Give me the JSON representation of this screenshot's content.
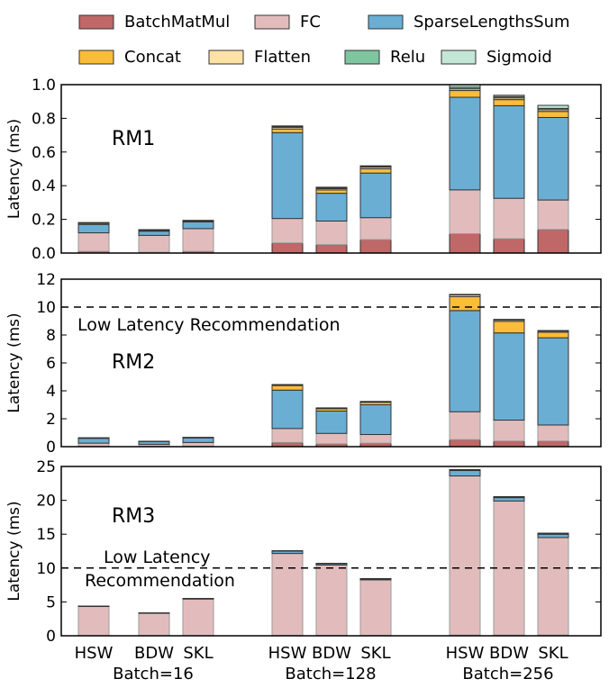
{
  "chart_data": {
    "type": "bar",
    "stacked": true,
    "legend": {
      "placement": "top",
      "entries": [
        {
          "name": "BatchMatMul",
          "color": "#c06767"
        },
        {
          "name": "FC",
          "color": "#e2bcbc"
        },
        {
          "name": "SparseLengthsSum",
          "color": "#6aaed3"
        },
        {
          "name": "Concat",
          "color": "#fbbc3a"
        },
        {
          "name": "Flatten",
          "color": "#fde2a6"
        },
        {
          "name": "Relu",
          "color": "#7dc69f"
        },
        {
          "name": "Sigmoid",
          "color": "#c4e6d6"
        }
      ]
    },
    "categories": [
      "HSW",
      "BDW",
      "SKL",
      "HSW",
      "BDW",
      "SKL",
      "HSW",
      "BDW",
      "SKL"
    ],
    "groups": [
      "Batch=16",
      "Batch=128",
      "Batch=256"
    ],
    "panels": [
      {
        "label": "RM1",
        "ylabel": "Latency (ms)",
        "ylim": [
          0,
          1.0
        ],
        "yticks": [
          "0.0",
          "0.2",
          "0.4",
          "0.6",
          "0.8",
          "1.0"
        ],
        "threshold": null,
        "annotation": [],
        "series": [
          {
            "name": "BatchMatMul",
            "values": [
              0.01,
              0.005,
              0.01,
              0.06,
              0.05,
              0.08,
              0.115,
              0.085,
              0.14
            ]
          },
          {
            "name": "FC",
            "values": [
              0.11,
              0.1,
              0.135,
              0.145,
              0.14,
              0.13,
              0.26,
              0.24,
              0.175
            ]
          },
          {
            "name": "SparseLengthsSum",
            "values": [
              0.05,
              0.025,
              0.04,
              0.51,
              0.165,
              0.265,
              0.55,
              0.55,
              0.49
            ]
          },
          {
            "name": "Concat",
            "values": [
              0.007,
              0.005,
              0.005,
              0.022,
              0.02,
              0.025,
              0.04,
              0.036,
              0.036
            ]
          },
          {
            "name": "Flatten",
            "values": [
              0.002,
              0.002,
              0.002,
              0.01,
              0.008,
              0.01,
              0.01,
              0.01,
              0.01
            ]
          },
          {
            "name": "Relu",
            "values": [
              0.001,
              0.001,
              0.001,
              0.004,
              0.004,
              0.004,
              0.01,
              0.008,
              0.008
            ]
          },
          {
            "name": "Sigmoid",
            "values": [
              0.001,
              0.001,
              0.001,
              0.004,
              0.004,
              0.004,
              0.015,
              0.008,
              0.018
            ]
          }
        ]
      },
      {
        "label": "RM2",
        "ylabel": "Latency (ms)",
        "ylim": [
          0,
          12
        ],
        "yticks": [
          "0",
          "2",
          "4",
          "6",
          "8",
          "10",
          "12"
        ],
        "threshold": 10,
        "annotation": [
          "Low Latency Recommendation"
        ],
        "series": [
          {
            "name": "BatchMatMul",
            "values": [
              0.03,
              0.02,
              0.03,
              0.3,
              0.2,
              0.25,
              0.5,
              0.4,
              0.4
            ]
          },
          {
            "name": "FC",
            "values": [
              0.22,
              0.15,
              0.27,
              1.0,
              0.75,
              0.62,
              2.0,
              1.5,
              1.15
            ]
          },
          {
            "name": "SparseLengthsSum",
            "values": [
              0.35,
              0.2,
              0.33,
              2.75,
              1.6,
              2.13,
              7.25,
              6.25,
              6.25
            ]
          },
          {
            "name": "Concat",
            "values": [
              0.02,
              0.01,
              0.02,
              0.33,
              0.17,
              0.18,
              1.0,
              0.83,
              0.4
            ]
          },
          {
            "name": "Flatten",
            "values": [
              0.005,
              0.005,
              0.005,
              0.05,
              0.04,
              0.04,
              0.12,
              0.1,
              0.08
            ]
          },
          {
            "name": "Relu",
            "values": [
              0.002,
              0.002,
              0.002,
              0.01,
              0.01,
              0.01,
              0.02,
              0.02,
              0.02
            ]
          },
          {
            "name": "Sigmoid",
            "values": [
              0.002,
              0.002,
              0.002,
              0.01,
              0.01,
              0.01,
              0.02,
              0.02,
              0.02
            ]
          }
        ]
      },
      {
        "label": "RM3",
        "ylabel": "Latency (ms)",
        "ylim": [
          0,
          25
        ],
        "yticks": [
          "0",
          "5",
          "10",
          "15",
          "20",
          "25"
        ],
        "threshold": 10,
        "annotation": [
          "Low Latency",
          "Recommendation"
        ],
        "series": [
          {
            "name": "BatchMatMul",
            "values": [
              0.02,
              0.02,
              0.02,
              0.05,
              0.05,
              0.05,
              0.1,
              0.1,
              0.1
            ]
          },
          {
            "name": "FC",
            "values": [
              4.3,
              3.3,
              5.4,
              12.1,
              10.4,
              8.2,
              23.5,
              19.8,
              14.4
            ]
          },
          {
            "name": "SparseLengthsSum",
            "values": [
              0.05,
              0.03,
              0.05,
              0.35,
              0.2,
              0.15,
              0.8,
              0.5,
              0.5
            ]
          },
          {
            "name": "Concat",
            "values": [
              0.01,
              0.01,
              0.01,
              0.03,
              0.03,
              0.03,
              0.1,
              0.1,
              0.1
            ]
          },
          {
            "name": "Flatten",
            "values": [
              0.005,
              0.005,
              0.005,
              0.01,
              0.01,
              0.01,
              0.02,
              0.02,
              0.02
            ]
          },
          {
            "name": "Relu",
            "values": [
              0.002,
              0.002,
              0.002,
              0.005,
              0.005,
              0.005,
              0.01,
              0.01,
              0.01
            ]
          },
          {
            "name": "Sigmoid",
            "values": [
              0.002,
              0.002,
              0.002,
              0.005,
              0.005,
              0.005,
              0.01,
              0.01,
              0.01
            ]
          }
        ]
      }
    ]
  }
}
